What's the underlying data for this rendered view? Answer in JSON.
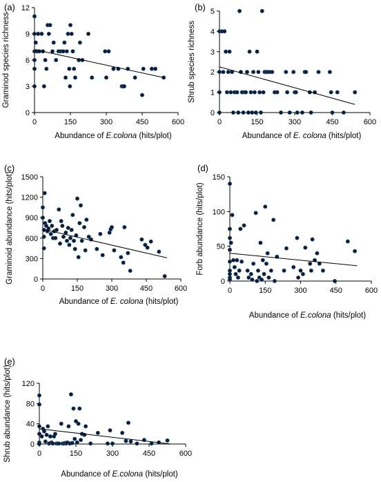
{
  "colors": {
    "point": "#0c1b33",
    "point_edge": "#2c5d8a",
    "trend": "#000000"
  },
  "chart_data": [
    {
      "id": "a",
      "type": "scatter",
      "panel_label": "(a)",
      "xlabel": "Abundance of E.colona (hits/plot)",
      "xlabel_parts": [
        {
          "text": "Abundance of ",
          "italic": false
        },
        {
          "text": "E.colona",
          "italic": true
        },
        {
          "text": " (hits/plot)",
          "italic": false
        }
      ],
      "ylabel": "Graminod species richness",
      "xlim": [
        0,
        600
      ],
      "ylim": [
        0,
        12
      ],
      "xticks": [
        0,
        150,
        300,
        450,
        600
      ],
      "yticks": [
        0,
        3,
        6,
        9,
        12
      ],
      "trendline": {
        "x": [
          0,
          540
        ],
        "y": [
          7.2,
          4.0
        ]
      },
      "points": [
        [
          0,
          11
        ],
        [
          0,
          9
        ],
        [
          0,
          7
        ],
        [
          0,
          6
        ],
        [
          0,
          5
        ],
        [
          0,
          3
        ],
        [
          5,
          8
        ],
        [
          10,
          7
        ],
        [
          15,
          9
        ],
        [
          20,
          7
        ],
        [
          30,
          9
        ],
        [
          35,
          7
        ],
        [
          40,
          3
        ],
        [
          45,
          6
        ],
        [
          50,
          5
        ],
        [
          55,
          10
        ],
        [
          60,
          9
        ],
        [
          65,
          10
        ],
        [
          75,
          7
        ],
        [
          80,
          8
        ],
        [
          90,
          6
        ],
        [
          100,
          7
        ],
        [
          110,
          7
        ],
        [
          120,
          7
        ],
        [
          125,
          8
        ],
        [
          130,
          4
        ],
        [
          135,
          7
        ],
        [
          140,
          9
        ],
        [
          145,
          5
        ],
        [
          148,
          3
        ],
        [
          150,
          10
        ],
        [
          155,
          9
        ],
        [
          160,
          7
        ],
        [
          165,
          5
        ],
        [
          170,
          4
        ],
        [
          185,
          6
        ],
        [
          190,
          8
        ],
        [
          200,
          6
        ],
        [
          225,
          9
        ],
        [
          240,
          4
        ],
        [
          295,
          7
        ],
        [
          300,
          4
        ],
        [
          310,
          7
        ],
        [
          330,
          5
        ],
        [
          350,
          5
        ],
        [
          365,
          3
        ],
        [
          370,
          3
        ],
        [
          375,
          3
        ],
        [
          390,
          5
        ],
        [
          420,
          4
        ],
        [
          450,
          2
        ],
        [
          455,
          5
        ],
        [
          490,
          5
        ],
        [
          505,
          5
        ],
        [
          540,
          4
        ]
      ]
    },
    {
      "id": "b",
      "type": "scatter",
      "panel_label": "(b)",
      "xlabel": "Abundance of E. colona (hits/plot)",
      "xlabel_parts": [
        {
          "text": "Abundance of ",
          "italic": false
        },
        {
          "text": "E. colona",
          "italic": true
        },
        {
          "text": " (hits/plot)",
          "italic": false
        }
      ],
      "ylabel": "Shrub species richness",
      "xlim": [
        0,
        600
      ],
      "ylim": [
        0,
        5
      ],
      "xticks": [
        0,
        150,
        300,
        450,
        600
      ],
      "yticks": [
        0,
        1,
        2,
        3,
        4,
        5
      ],
      "trendline": {
        "x": [
          0,
          540
        ],
        "y": [
          2.25,
          0.4
        ]
      },
      "points": [
        [
          0,
          4
        ],
        [
          0,
          2
        ],
        [
          0,
          1
        ],
        [
          0,
          0
        ],
        [
          10,
          4
        ],
        [
          15,
          2
        ],
        [
          20,
          4
        ],
        [
          25,
          3
        ],
        [
          30,
          1
        ],
        [
          35,
          2
        ],
        [
          40,
          3
        ],
        [
          45,
          1
        ],
        [
          50,
          2
        ],
        [
          55,
          0
        ],
        [
          60,
          1
        ],
        [
          70,
          1
        ],
        [
          75,
          0
        ],
        [
          80,
          5
        ],
        [
          85,
          2
        ],
        [
          90,
          1
        ],
        [
          95,
          0
        ],
        [
          100,
          1
        ],
        [
          105,
          1
        ],
        [
          110,
          2
        ],
        [
          115,
          0
        ],
        [
          120,
          3
        ],
        [
          125,
          1
        ],
        [
          130,
          0
        ],
        [
          135,
          2
        ],
        [
          140,
          1
        ],
        [
          145,
          0
        ],
        [
          150,
          3
        ],
        [
          155,
          2
        ],
        [
          160,
          1
        ],
        [
          165,
          0
        ],
        [
          170,
          5
        ],
        [
          175,
          1
        ],
        [
          180,
          2
        ],
        [
          185,
          2
        ],
        [
          190,
          2
        ],
        [
          200,
          2
        ],
        [
          210,
          2
        ],
        [
          220,
          1
        ],
        [
          230,
          1
        ],
        [
          245,
          0
        ],
        [
          265,
          2
        ],
        [
          270,
          1
        ],
        [
          280,
          0
        ],
        [
          295,
          2
        ],
        [
          300,
          1
        ],
        [
          305,
          1
        ],
        [
          310,
          0
        ],
        [
          330,
          0
        ],
        [
          340,
          2
        ],
        [
          345,
          2
        ],
        [
          360,
          1
        ],
        [
          365,
          0
        ],
        [
          380,
          1
        ],
        [
          395,
          2
        ],
        [
          440,
          2
        ],
        [
          445,
          1
        ],
        [
          450,
          0
        ],
        [
          470,
          1
        ],
        [
          495,
          0
        ],
        [
          540,
          1
        ]
      ]
    },
    {
      "id": "c",
      "type": "scatter",
      "panel_label": "(c)",
      "xlabel": "Abundance of E. colona (hits/plot)",
      "xlabel_parts": [
        {
          "text": "Abundance of ",
          "italic": false
        },
        {
          "text": "E. colona",
          "italic": true
        },
        {
          "text": " (hits/plot)",
          "italic": false
        }
      ],
      "ylabel": "Graminoid abundance (hits/plot)",
      "xlim": [
        0,
        600
      ],
      "ylim": [
        0,
        1500
      ],
      "xticks": [
        0,
        150,
        300,
        450,
        600
      ],
      "yticks": [
        0,
        300,
        600,
        900,
        1200,
        1500
      ],
      "trendline": {
        "x": [
          0,
          540
        ],
        "y": [
          730,
          310
        ]
      },
      "points": [
        [
          0,
          1050
        ],
        [
          0,
          900
        ],
        [
          5,
          720
        ],
        [
          5,
          620
        ],
        [
          5,
          450
        ],
        [
          8,
          1260
        ],
        [
          10,
          820
        ],
        [
          15,
          780
        ],
        [
          20,
          700
        ],
        [
          25,
          740
        ],
        [
          30,
          850
        ],
        [
          35,
          660
        ],
        [
          40,
          780
        ],
        [
          45,
          600
        ],
        [
          50,
          700
        ],
        [
          55,
          600
        ],
        [
          60,
          720
        ],
        [
          70,
          1020
        ],
        [
          75,
          520
        ],
        [
          80,
          850
        ],
        [
          85,
          780
        ],
        [
          90,
          620
        ],
        [
          100,
          680
        ],
        [
          105,
          560
        ],
        [
          110,
          750
        ],
        [
          115,
          500
        ],
        [
          120,
          600
        ],
        [
          125,
          720
        ],
        [
          130,
          940
        ],
        [
          135,
          560
        ],
        [
          140,
          440
        ],
        [
          145,
          640
        ],
        [
          150,
          1180
        ],
        [
          155,
          320
        ],
        [
          160,
          820
        ],
        [
          165,
          1080
        ],
        [
          170,
          560
        ],
        [
          180,
          760
        ],
        [
          185,
          420
        ],
        [
          190,
          870
        ],
        [
          200,
          620
        ],
        [
          210,
          580
        ],
        [
          235,
          440
        ],
        [
          250,
          660
        ],
        [
          260,
          350
        ],
        [
          290,
          680
        ],
        [
          295,
          730
        ],
        [
          300,
          760
        ],
        [
          310,
          420
        ],
        [
          340,
          320
        ],
        [
          350,
          240
        ],
        [
          355,
          760
        ],
        [
          370,
          380
        ],
        [
          380,
          120
        ],
        [
          430,
          580
        ],
        [
          445,
          500
        ],
        [
          455,
          460
        ],
        [
          470,
          550
        ],
        [
          505,
          400
        ],
        [
          530,
          40
        ]
      ]
    },
    {
      "id": "d",
      "type": "scatter",
      "panel_label": "(d)",
      "xlabel": "Abundance of E.colona (hits/plot)",
      "xlabel_parts": [
        {
          "text": "Abundance of ",
          "italic": false
        },
        {
          "text": "E.colona",
          "italic": true
        },
        {
          "text": " (hits/plot)",
          "italic": false
        }
      ],
      "ylabel": "Forb abundance (hits/plot)",
      "xlim": [
        0,
        600
      ],
      "ylim": [
        0,
        150
      ],
      "xticks": [
        0,
        150,
        300,
        450,
        600
      ],
      "yticks": [
        0,
        50,
        100,
        150
      ],
      "trendline": {
        "x": [
          0,
          540
        ],
        "y": [
          40,
          22
        ]
      },
      "points": [
        [
          0,
          140
        ],
        [
          0,
          75
        ],
        [
          0,
          62
        ],
        [
          0,
          45
        ],
        [
          0,
          28
        ],
        [
          0,
          15
        ],
        [
          0,
          10
        ],
        [
          0,
          5
        ],
        [
          0,
          2
        ],
        [
          5,
          55
        ],
        [
          10,
          95
        ],
        [
          15,
          30
        ],
        [
          20,
          20
        ],
        [
          25,
          10
        ],
        [
          30,
          30
        ],
        [
          35,
          5
        ],
        [
          40,
          15
        ],
        [
          45,
          75
        ],
        [
          50,
          28
        ],
        [
          60,
          80
        ],
        [
          75,
          15
        ],
        [
          80,
          5
        ],
        [
          90,
          10
        ],
        [
          95,
          2
        ],
        [
          100,
          25
        ],
        [
          110,
          98
        ],
        [
          115,
          0
        ],
        [
          120,
          15
        ],
        [
          125,
          5
        ],
        [
          130,
          55
        ],
        [
          135,
          2
        ],
        [
          140,
          30
        ],
        [
          145,
          10
        ],
        [
          150,
          107
        ],
        [
          155,
          25
        ],
        [
          160,
          40
        ],
        [
          165,
          5
        ],
        [
          175,
          15
        ],
        [
          185,
          88
        ],
        [
          190,
          0
        ],
        [
          200,
          35
        ],
        [
          230,
          15
        ],
        [
          240,
          47
        ],
        [
          270,
          20
        ],
        [
          285,
          62
        ],
        [
          290,
          5
        ],
        [
          300,
          15
        ],
        [
          310,
          10
        ],
        [
          320,
          48
        ],
        [
          340,
          25
        ],
        [
          345,
          15
        ],
        [
          350,
          60
        ],
        [
          360,
          30
        ],
        [
          370,
          40
        ],
        [
          380,
          25
        ],
        [
          395,
          15
        ],
        [
          445,
          0
        ],
        [
          500,
          57
        ],
        [
          530,
          43
        ]
      ]
    },
    {
      "id": "e",
      "type": "scatter",
      "panel_label": "(e)",
      "xlabel": "Abundance of E.colona (hits/plot)",
      "xlabel_parts": [
        {
          "text": "Abundance of ",
          "italic": false
        },
        {
          "text": "E.colona",
          "italic": true
        },
        {
          "text": " (hits/plot)",
          "italic": false
        }
      ],
      "ylabel": "Shrub abundance (hits/plot)",
      "xlim": [
        0,
        600
      ],
      "ylim": [
        0,
        120
      ],
      "xticks": [
        0,
        150,
        300,
        450,
        600
      ],
      "yticks": [
        0,
        40,
        80,
        120
      ],
      "trendline": {
        "x": [
          0,
          540
        ],
        "y": [
          30,
          0
        ]
      },
      "points": [
        [
          0,
          96
        ],
        [
          0,
          78
        ],
        [
          0,
          35
        ],
        [
          0,
          20
        ],
        [
          0,
          3
        ],
        [
          0,
          0
        ],
        [
          10,
          15
        ],
        [
          15,
          30
        ],
        [
          20,
          25
        ],
        [
          25,
          5
        ],
        [
          30,
          18
        ],
        [
          35,
          35
        ],
        [
          40,
          1
        ],
        [
          45,
          15
        ],
        [
          50,
          3
        ],
        [
          55,
          1
        ],
        [
          60,
          15
        ],
        [
          65,
          20
        ],
        [
          70,
          1
        ],
        [
          75,
          1
        ],
        [
          80,
          1
        ],
        [
          90,
          40
        ],
        [
          95,
          1
        ],
        [
          100,
          1
        ],
        [
          105,
          2
        ],
        [
          110,
          1
        ],
        [
          115,
          3
        ],
        [
          120,
          35
        ],
        [
          125,
          1
        ],
        [
          130,
          98
        ],
        [
          135,
          2
        ],
        [
          140,
          70
        ],
        [
          145,
          10
        ],
        [
          150,
          45
        ],
        [
          155,
          3
        ],
        [
          160,
          40
        ],
        [
          165,
          70
        ],
        [
          170,
          8
        ],
        [
          175,
          20
        ],
        [
          185,
          18
        ],
        [
          190,
          35
        ],
        [
          210,
          1
        ],
        [
          240,
          22
        ],
        [
          280,
          1
        ],
        [
          290,
          27
        ],
        [
          300,
          1
        ],
        [
          340,
          22
        ],
        [
          355,
          6
        ],
        [
          365,
          42
        ],
        [
          375,
          5
        ],
        [
          400,
          1
        ],
        [
          430,
          8
        ],
        [
          460,
          1
        ],
        [
          490,
          3
        ],
        [
          525,
          7
        ]
      ]
    }
  ]
}
